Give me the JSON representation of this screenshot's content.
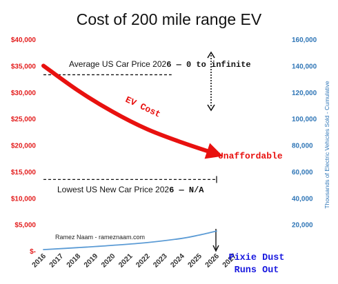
{
  "chart_data": {
    "type": "line",
    "title": "Cost of 200 mile range EV",
    "x": [
      "2016",
      "2017",
      "2018",
      "2019",
      "2020",
      "2021",
      "2022",
      "2023",
      "2024",
      "2025",
      "2026",
      "2027"
    ],
    "y_left": {
      "ticks": [
        "$-",
        "$5,000",
        "$10,000",
        "$15,000",
        "$20,000",
        "$25,000",
        "$30,000",
        "$35,000",
        "$40,000"
      ],
      "ylim": [
        0,
        40000
      ],
      "color": "#e31b1b"
    },
    "y_right": {
      "label": "Thousands of Electric Vehicles Sold - Cumulative",
      "ticks": [
        "20,000",
        "40,000",
        "60,000",
        "80,000",
        "100,000",
        "120,000",
        "140,000",
        "160,000"
      ],
      "ylim": [
        0,
        160000
      ],
      "color": "#2e75b6"
    },
    "series": [
      {
        "name": "EV Cost",
        "axis": "left",
        "color": "#e8110f",
        "x": [
          2016,
          2018,
          2020,
          2022,
          2024,
          2026
        ],
        "y": [
          35000,
          30300,
          26300,
          23000,
          20500,
          18300
        ]
      },
      {
        "axis": "right",
        "color": "#5b9bd5",
        "x": [
          2016,
          2018,
          2020,
          2022,
          2024,
          2025,
          2026
        ],
        "y": [
          1000,
          2500,
          4200,
          6300,
          9500,
          12000,
          15000
        ]
      }
    ],
    "reference_lines": [
      {
        "value": 33300,
        "axis": "left",
        "x_from": 2016,
        "x_to": 2023.4
      },
      {
        "value": 13500,
        "axis": "left",
        "x_from": 2016,
        "x_to": 2026
      }
    ],
    "annotations": {
      "avg_price_prefix": "Average US Car Price 202",
      "avg_price_suffix": "6 — 0 to infinite",
      "lowest_price_prefix": "Lowest US New Car Price 202",
      "lowest_price_suffix": "6 — N/A",
      "ev_cost_label": "EV Cost",
      "unaffordable_label": "Unaffordable",
      "credit": "Ramez Naam - rameznaam.com",
      "pixie_line1": "Pixie Dust",
      "pixie_line2": "Runs Out"
    }
  }
}
